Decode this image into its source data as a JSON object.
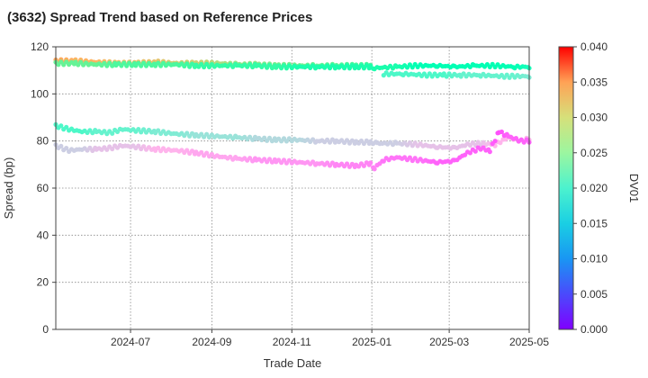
{
  "chart_data": {
    "type": "scatter",
    "title": "(3632)   Spread Trend based on Reference Prices",
    "xlabel": "Trade Date",
    "ylabel": "Spread (bp)",
    "colorbar_label": "DV01",
    "xlim": [
      "2024-05-05",
      "2025-05-01"
    ],
    "ylim": [
      0,
      120
    ],
    "yticks": [
      0,
      20,
      40,
      60,
      80,
      100,
      120
    ],
    "xticks": [
      "2024-07",
      "2024-09",
      "2024-11",
      "2025-01",
      "2025-03",
      "2025-05"
    ],
    "xtick_dates": [
      "2024-07-01",
      "2024-09-01",
      "2024-11-01",
      "2025-01-01",
      "2025-03-01",
      "2025-05-01"
    ],
    "color_range": [
      0.0,
      0.04
    ],
    "colorbar_ticks": [
      "0.000",
      "0.005",
      "0.010",
      "0.015",
      "0.020",
      "0.025",
      "0.030",
      "0.035",
      "0.040"
    ],
    "grid": true,
    "colormap": "rainbow",
    "series": [
      {
        "points": [
          [
            "2024-05-05",
            114,
            0.031
          ],
          [
            "2024-05-20",
            114,
            0.03
          ],
          [
            "2024-06-05",
            113.5,
            0.03
          ],
          [
            "2024-06-20",
            113,
            0.029
          ],
          [
            "2024-07-05",
            113,
            0.029
          ],
          [
            "2024-07-20",
            113.5,
            0.029
          ],
          [
            "2024-08-05",
            113,
            0.028
          ],
          [
            "2024-08-20",
            113,
            0.028
          ],
          [
            "2024-09-05",
            113,
            0.027
          ],
          [
            "2024-09-20",
            112.5,
            0.026
          ],
          [
            "2024-10-05",
            112.5,
            0.026
          ],
          [
            "2024-10-20",
            112,
            0.025
          ],
          [
            "2024-11-05",
            112,
            0.025
          ],
          [
            "2024-11-20",
            112,
            0.024
          ],
          [
            "2024-12-05",
            112,
            0.024
          ],
          [
            "2024-12-20",
            112,
            0.023
          ],
          [
            "2024-12-31",
            112,
            0.023
          ]
        ]
      },
      {
        "points": [
          [
            "2024-05-05",
            113,
            0.024
          ],
          [
            "2024-05-20",
            113,
            0.024
          ],
          [
            "2024-06-05",
            112.5,
            0.024
          ],
          [
            "2024-06-20",
            112.5,
            0.023
          ],
          [
            "2024-07-05",
            112.5,
            0.023
          ],
          [
            "2024-07-20",
            112.5,
            0.023
          ],
          [
            "2024-08-05",
            112.5,
            0.023
          ],
          [
            "2024-08-20",
            112,
            0.022
          ],
          [
            "2024-09-05",
            112,
            0.022
          ],
          [
            "2024-09-20",
            112,
            0.022
          ],
          [
            "2024-10-05",
            112,
            0.022
          ],
          [
            "2024-10-20",
            111.5,
            0.022
          ],
          [
            "2024-11-05",
            111.5,
            0.021
          ],
          [
            "2024-11-20",
            111.5,
            0.021
          ],
          [
            "2024-12-05",
            111.5,
            0.021
          ],
          [
            "2024-12-20",
            111.5,
            0.021
          ],
          [
            "2024-12-31",
            111.5,
            0.021
          ],
          [
            "2025-01-03",
            111,
            0.021
          ],
          [
            "2025-01-20",
            111.5,
            0.021
          ],
          [
            "2025-02-05",
            112,
            0.02
          ],
          [
            "2025-02-20",
            112,
            0.02
          ],
          [
            "2025-03-05",
            111.5,
            0.02
          ],
          [
            "2025-03-20",
            112,
            0.02
          ],
          [
            "2025-04-05",
            112,
            0.02
          ],
          [
            "2025-04-20",
            111.5,
            0.02
          ],
          [
            "2025-05-01",
            111.5,
            0.019
          ]
        ]
      },
      {
        "points": [
          [
            "2025-01-10",
            108.5,
            0.017
          ],
          [
            "2025-01-25",
            108.5,
            0.017
          ],
          [
            "2025-02-10",
            108,
            0.017
          ],
          [
            "2025-02-25",
            108,
            0.017
          ],
          [
            "2025-03-10",
            108,
            0.016
          ],
          [
            "2025-03-25",
            108,
            0.016
          ],
          [
            "2025-04-10",
            107.5,
            0.016
          ],
          [
            "2025-04-20",
            107.5,
            0.016
          ],
          [
            "2025-05-01",
            107.5,
            0.015
          ]
        ]
      },
      {
        "points": [
          [
            "2024-05-05",
            86.5,
            0.017
          ],
          [
            "2024-05-15",
            85,
            0.017
          ],
          [
            "2024-05-25",
            84,
            0.017
          ],
          [
            "2024-06-05",
            84,
            0.016
          ],
          [
            "2024-06-15",
            83.5,
            0.016
          ],
          [
            "2024-06-25",
            85,
            0.016
          ],
          [
            "2024-07-05",
            84.5,
            0.016
          ],
          [
            "2024-07-20",
            84,
            0.015
          ],
          [
            "2024-08-05",
            83,
            0.015
          ],
          [
            "2024-08-20",
            82.5,
            0.014
          ],
          [
            "2024-09-05",
            82,
            0.014
          ],
          [
            "2024-09-20",
            81.5,
            0.014
          ],
          [
            "2024-10-05",
            81,
            0.013
          ],
          [
            "2024-10-20",
            80.5,
            0.013
          ],
          [
            "2024-11-05",
            80.5,
            0.013
          ],
          [
            "2024-11-20",
            80,
            0.012
          ],
          [
            "2024-12-05",
            80,
            0.012
          ],
          [
            "2024-12-20",
            79.5,
            0.012
          ],
          [
            "2024-12-31",
            79.5,
            0.012
          ],
          [
            "2025-01-05",
            79,
            0.012
          ],
          [
            "2025-01-20",
            79,
            0.012
          ],
          [
            "2025-02-05",
            78.5,
            0.011
          ],
          [
            "2025-02-20",
            77.5,
            0.011
          ],
          [
            "2025-03-05",
            77,
            0.011
          ],
          [
            "2025-03-15",
            78.5,
            0.011
          ],
          [
            "2025-03-25",
            79,
            0.011
          ],
          [
            "2025-04-05",
            78.5,
            0.01
          ],
          [
            "2025-04-15",
            81.5,
            0.01
          ],
          [
            "2025-04-25",
            80,
            0.01
          ],
          [
            "2025-05-01",
            81,
            0.01
          ]
        ]
      },
      {
        "points": [
          [
            "2024-05-05",
            78,
            0.012
          ],
          [
            "2024-05-15",
            76,
            0.012
          ],
          [
            "2024-05-25",
            76.5,
            0.012
          ],
          [
            "2024-06-05",
            76.5,
            0.011
          ],
          [
            "2024-06-15",
            77,
            0.011
          ],
          [
            "2024-06-25",
            78,
            0.011
          ],
          [
            "2024-07-05",
            77.5,
            0.011
          ],
          [
            "2024-07-20",
            76.5,
            0.01
          ],
          [
            "2024-08-05",
            76,
            0.01
          ],
          [
            "2024-08-20",
            75,
            0.009
          ],
          [
            "2024-09-05",
            73.5,
            0.009
          ],
          [
            "2024-09-20",
            72.5,
            0.009
          ],
          [
            "2024-10-05",
            72,
            0.008
          ],
          [
            "2024-10-20",
            71.5,
            0.008
          ],
          [
            "2024-11-05",
            71,
            0.008
          ],
          [
            "2024-11-20",
            70.5,
            0.008
          ],
          [
            "2024-12-05",
            70,
            0.007
          ],
          [
            "2024-12-20",
            69.5,
            0.007
          ],
          [
            "2024-12-31",
            70.5,
            0.007
          ],
          [
            "2025-01-03",
            68.5,
            0.007
          ],
          [
            "2025-01-10",
            72,
            0.006
          ],
          [
            "2025-01-20",
            73,
            0.006
          ],
          [
            "2025-02-05",
            72,
            0.006
          ],
          [
            "2025-02-20",
            71,
            0.005
          ],
          [
            "2025-03-05",
            71.5,
            0.005
          ],
          [
            "2025-03-15",
            75,
            0.005
          ],
          [
            "2025-03-25",
            77,
            0.005
          ],
          [
            "2025-04-01",
            76,
            0.005
          ],
          [
            "2025-04-08",
            84,
            0.004
          ],
          [
            "2025-04-15",
            82,
            0.005
          ],
          [
            "2025-04-25",
            80,
            0.005
          ],
          [
            "2025-05-01",
            80,
            0.005
          ]
        ]
      }
    ]
  }
}
